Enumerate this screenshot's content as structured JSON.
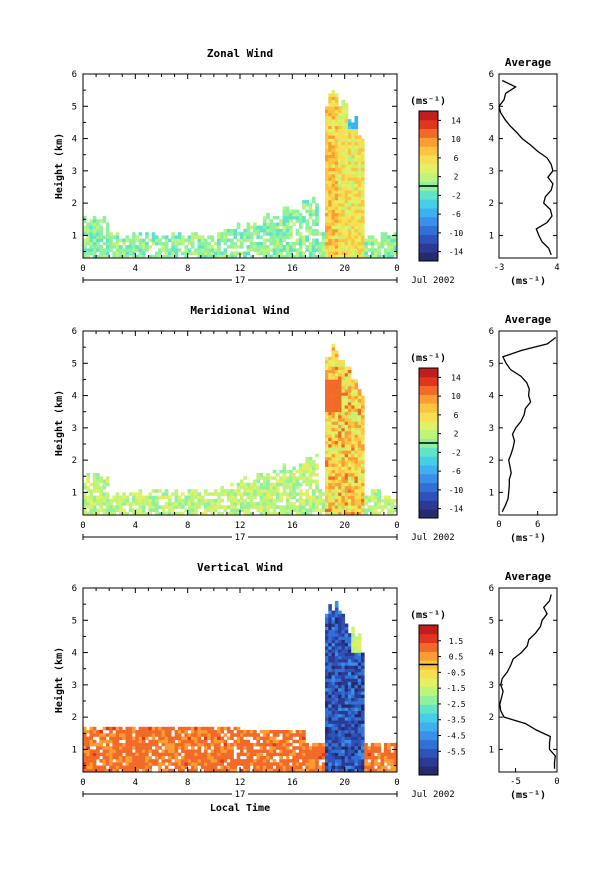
{
  "x_axis": {
    "label": "Local Time",
    "ticks": [
      "0",
      "4",
      "8",
      "12",
      "16",
      "20",
      "0"
    ],
    "day_label": "17",
    "date_label": "Jul 2002"
  },
  "y_axis": {
    "label": "Height (km)",
    "ticks": [
      "1",
      "2",
      "3",
      "4",
      "5",
      "6"
    ]
  },
  "unit_label": "(ms⁻¹)",
  "avg_title": "Average",
  "colormap": [
    "#262a6e",
    "#2b3b93",
    "#2f52b8",
    "#3170d6",
    "#3a90e8",
    "#3fb0ee",
    "#45cfe7",
    "#5fe3c9",
    "#8ff0a0",
    "#bdf47a",
    "#e2f063",
    "#f7de52",
    "#fdc440",
    "#fb9d33",
    "#f26a28",
    "#e0351f",
    "#c01d1d"
  ],
  "chart_data": [
    {
      "type": "heatmap",
      "title": "Zonal Wind",
      "colorbar": {
        "min": -16,
        "max": 16,
        "ticks": [
          "14",
          "10",
          "6",
          "2",
          "-2",
          "-6",
          "-10",
          "-14"
        ]
      },
      "average_profile": {
        "xlim": [
          -3,
          4
        ],
        "x_ticks": [
          "-3",
          "4"
        ],
        "height_km": [
          0.4,
          0.6,
          0.8,
          1.0,
          1.2,
          1.4,
          1.6,
          1.8,
          2.0,
          2.2,
          2.4,
          2.6,
          2.8,
          3.0,
          3.2,
          3.4,
          3.6,
          3.8,
          4.0,
          4.2,
          4.4,
          4.6,
          4.8,
          5.0,
          5.2,
          5.4,
          5.6,
          5.8
        ],
        "value_ms": [
          3.3,
          3.0,
          2.2,
          1.8,
          1.5,
          2.8,
          3.4,
          3.2,
          2.4,
          2.6,
          3.3,
          3.5,
          2.9,
          3.5,
          3.3,
          2.8,
          1.7,
          0.8,
          -0.2,
          -0.9,
          -1.7,
          -2.3,
          -2.8,
          -3.0,
          -2.4,
          -2.2,
          -1.0,
          -2.6
        ]
      }
    },
    {
      "type": "heatmap",
      "title": "Meridional Wind",
      "colorbar": {
        "min": -16,
        "max": 16,
        "ticks": [
          "14",
          "10",
          "6",
          "2",
          "-2",
          "-6",
          "-10",
          "-14"
        ]
      },
      "average_profile": {
        "xlim": [
          0,
          9
        ],
        "x_ticks": [
          "0",
          "6"
        ],
        "height_km": [
          0.4,
          0.6,
          0.8,
          1.0,
          1.2,
          1.4,
          1.6,
          1.8,
          2.0,
          2.2,
          2.4,
          2.6,
          2.8,
          3.0,
          3.2,
          3.4,
          3.6,
          3.8,
          4.0,
          4.2,
          4.4,
          4.6,
          4.8,
          5.0,
          5.2,
          5.4,
          5.6,
          5.8
        ],
        "value_ms": [
          0.5,
          1.0,
          1.4,
          1.5,
          1.6,
          1.6,
          1.9,
          1.7,
          1.5,
          1.9,
          2.2,
          2.4,
          2.1,
          2.6,
          3.4,
          3.9,
          4.1,
          4.9,
          4.6,
          4.7,
          4.3,
          3.4,
          1.8,
          1.1,
          0.6,
          3.5,
          7.5,
          8.8
        ]
      }
    },
    {
      "type": "heatmap",
      "title": "Vertical Wind",
      "colorbar": {
        "min": -7,
        "max": 2.5,
        "ticks": [
          "1.5",
          "0.5",
          "-0.5",
          "-1.5",
          "-2.5",
          "-3.5",
          "-4.5",
          "-5.5"
        ]
      },
      "average_profile": {
        "xlim": [
          -7,
          0
        ],
        "x_ticks": [
          "-5",
          "0"
        ],
        "height_km": [
          0.4,
          0.6,
          0.8,
          1.0,
          1.2,
          1.4,
          1.6,
          1.8,
          2.0,
          2.2,
          2.4,
          2.6,
          2.8,
          3.0,
          3.2,
          3.4,
          3.6,
          3.8,
          4.0,
          4.2,
          4.4,
          4.6,
          4.8,
          5.0,
          5.2,
          5.4,
          5.6,
          5.8
        ],
        "value_ms": [
          -0.3,
          -0.3,
          -0.2,
          -0.9,
          -0.9,
          -0.8,
          -2.5,
          -3.8,
          -6.4,
          -6.8,
          -6.9,
          -6.7,
          -6.5,
          -6.8,
          -6.6,
          -6.0,
          -5.6,
          -5.3,
          -4.3,
          -3.6,
          -3.4,
          -2.6,
          -2.0,
          -1.8,
          -1.2,
          -1.6,
          -0.9,
          -0.7
        ]
      }
    }
  ]
}
